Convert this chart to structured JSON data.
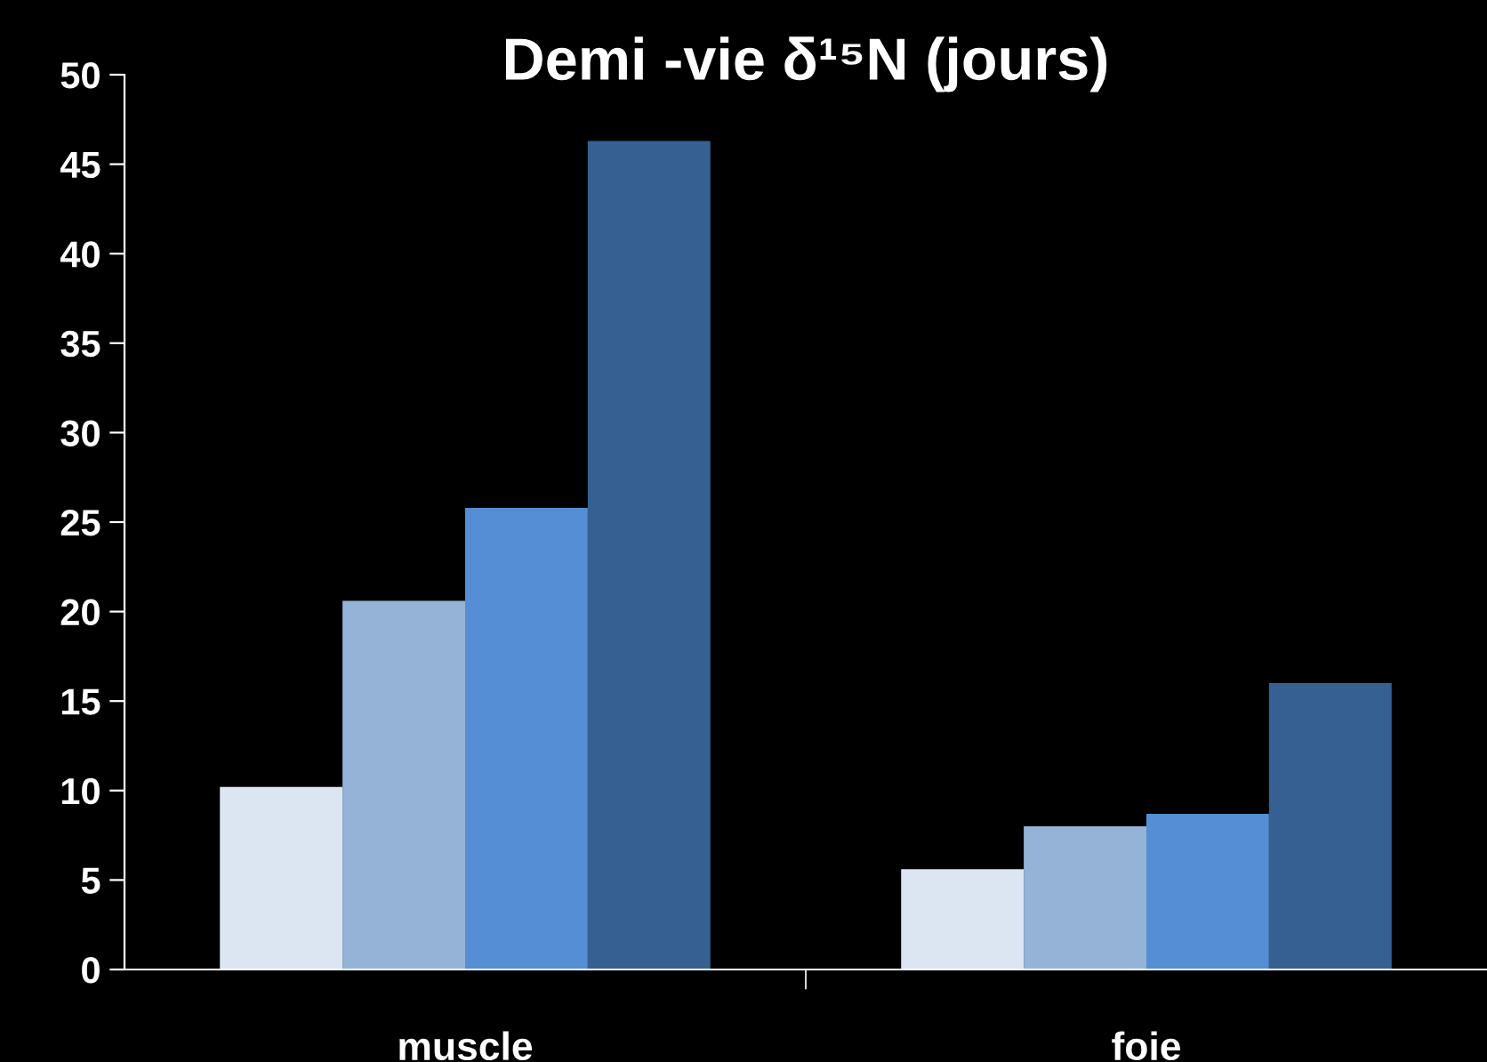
{
  "chart_data": {
    "type": "bar",
    "title": "Demi -vie δ¹⁵N (jours)",
    "categories": [
      "muscle",
      "foie"
    ],
    "series": [
      {
        "color": "#dce6f2",
        "values": [
          10.2,
          5.6
        ]
      },
      {
        "color": "#95b3d7",
        "values": [
          20.6,
          8.0
        ]
      },
      {
        "color": "#558ed5",
        "values": [
          25.8,
          8.7
        ]
      },
      {
        "color": "#376092",
        "values": [
          46.3,
          16.0
        ]
      }
    ],
    "ylim": [
      0,
      50
    ],
    "yticks": [
      0,
      5,
      10,
      15,
      20,
      25,
      30,
      35,
      40,
      45,
      50
    ],
    "grid": false,
    "legend": false
  }
}
